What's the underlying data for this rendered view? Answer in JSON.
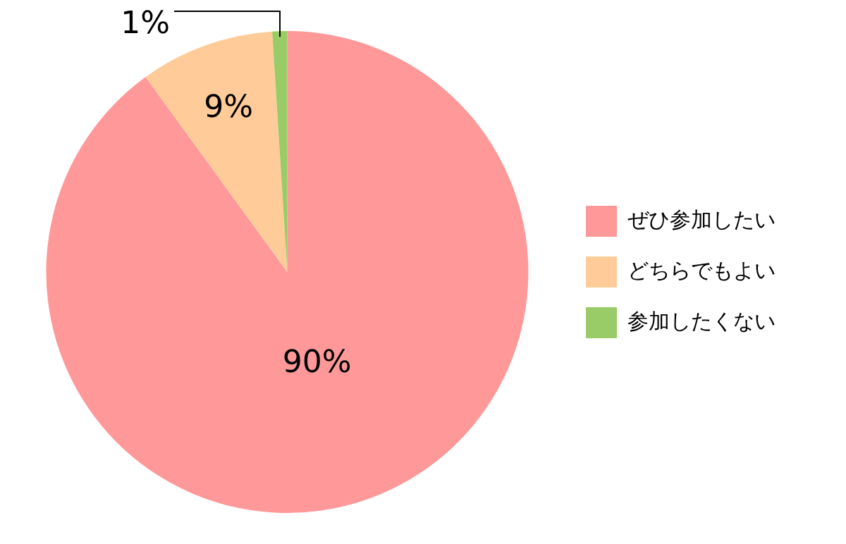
{
  "chart_data": {
    "type": "pie",
    "categories": [
      "ぜひ参加したい",
      "どちらでもよい",
      "参加したくない"
    ],
    "values": [
      90,
      9,
      1
    ],
    "colors": [
      "#ff9999",
      "#ffcc99",
      "#99cc66"
    ],
    "value_labels": [
      "90%",
      "9%",
      "1%"
    ],
    "legend": "right"
  }
}
